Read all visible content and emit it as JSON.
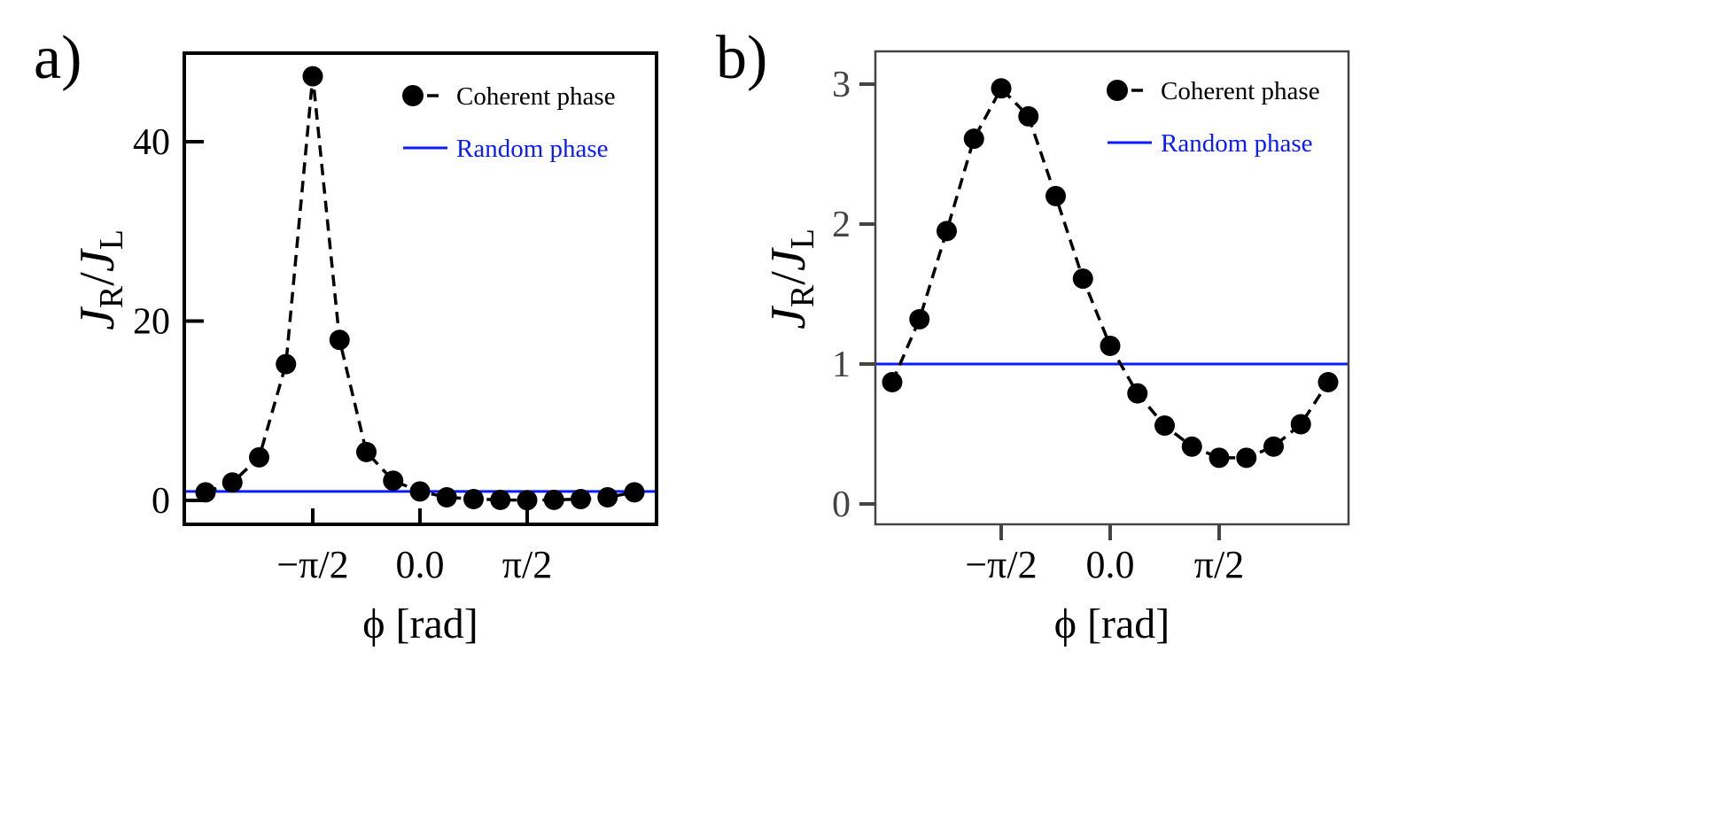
{
  "chart_data": [
    {
      "type": "line",
      "panel_label": "a)",
      "xlabel": "ϕ [rad]",
      "ylabel": "J_R/J_L",
      "ylabel_parts": {
        "main1": "J",
        "sub1": "R",
        "slash": "/",
        "main2": "J",
        "sub2": "L"
      },
      "xlim": [
        -3.35,
        3.35
      ],
      "ylim": [
        -2.5,
        50
      ],
      "xticks": [
        {
          "value": -1.5708,
          "label": "−π/2"
        },
        {
          "value": 0,
          "label": "0.0"
        },
        {
          "value": 1.5708,
          "label": "π/2"
        }
      ],
      "yticks": [
        {
          "value": 0,
          "label": "0"
        },
        {
          "value": 20,
          "label": "20"
        },
        {
          "value": 40,
          "label": "40"
        }
      ],
      "x_description": "ϕ from −π to π in steps of π/8",
      "x": [
        -3.1416,
        -2.7489,
        -2.3562,
        -1.9635,
        -1.5708,
        -1.1781,
        -0.7854,
        -0.3927,
        0,
        0.3927,
        0.7854,
        1.1781,
        1.5708,
        1.9635,
        2.3562,
        2.7489,
        3.1416
      ],
      "series": [
        {
          "name": "Coherent phase",
          "style": "dashed-markers",
          "color": "#000000",
          "values": [
            0.9,
            2.0,
            4.8,
            15.2,
            47.3,
            17.9,
            5.4,
            2.2,
            1.0,
            0.35,
            0.15,
            0.06,
            0.03,
            0.06,
            0.15,
            0.35,
            0.9
          ]
        },
        {
          "name": "Random phase",
          "style": "line",
          "color": "#0a1cff",
          "constant": 1.0
        }
      ],
      "legend": "top-right",
      "grid": false
    },
    {
      "type": "line",
      "panel_label": "b)",
      "xlabel": "ϕ [rad]",
      "ylabel": "J_R/J_L",
      "ylabel_parts": {
        "main1": "J",
        "sub1": "R",
        "slash": "/",
        "main2": "J",
        "sub2": "L"
      },
      "xlim": [
        -3.35,
        3.35
      ],
      "ylim": [
        -0.15,
        3.25
      ],
      "xticks": [
        {
          "value": -1.5708,
          "label": "−π/2"
        },
        {
          "value": 0,
          "label": "0.0"
        },
        {
          "value": 1.5708,
          "label": "π/2"
        }
      ],
      "yticks": [
        {
          "value": 0,
          "label": "0"
        },
        {
          "value": 1,
          "label": "1"
        },
        {
          "value": 2,
          "label": "2"
        },
        {
          "value": 3,
          "label": "3"
        }
      ],
      "x": [
        -3.1416,
        -2.7489,
        -2.3562,
        -1.9635,
        -1.5708,
        -1.1781,
        -0.7854,
        -0.3927,
        0,
        0.3927,
        0.7854,
        1.1781,
        1.5708,
        1.9635,
        2.3562,
        2.7489,
        3.1416
      ],
      "series": [
        {
          "name": "Coherent phase",
          "style": "dashed-markers",
          "color": "#000000",
          "values": [
            0.87,
            1.32,
            1.95,
            2.61,
            2.97,
            2.77,
            2.2,
            1.61,
            1.13,
            0.79,
            0.56,
            0.41,
            0.33,
            0.33,
            0.41,
            0.57,
            0.87
          ]
        },
        {
          "name": "Random phase",
          "style": "line",
          "color": "#0a1cff",
          "constant": 1.0
        }
      ],
      "legend": "top-right",
      "grid": false
    }
  ]
}
